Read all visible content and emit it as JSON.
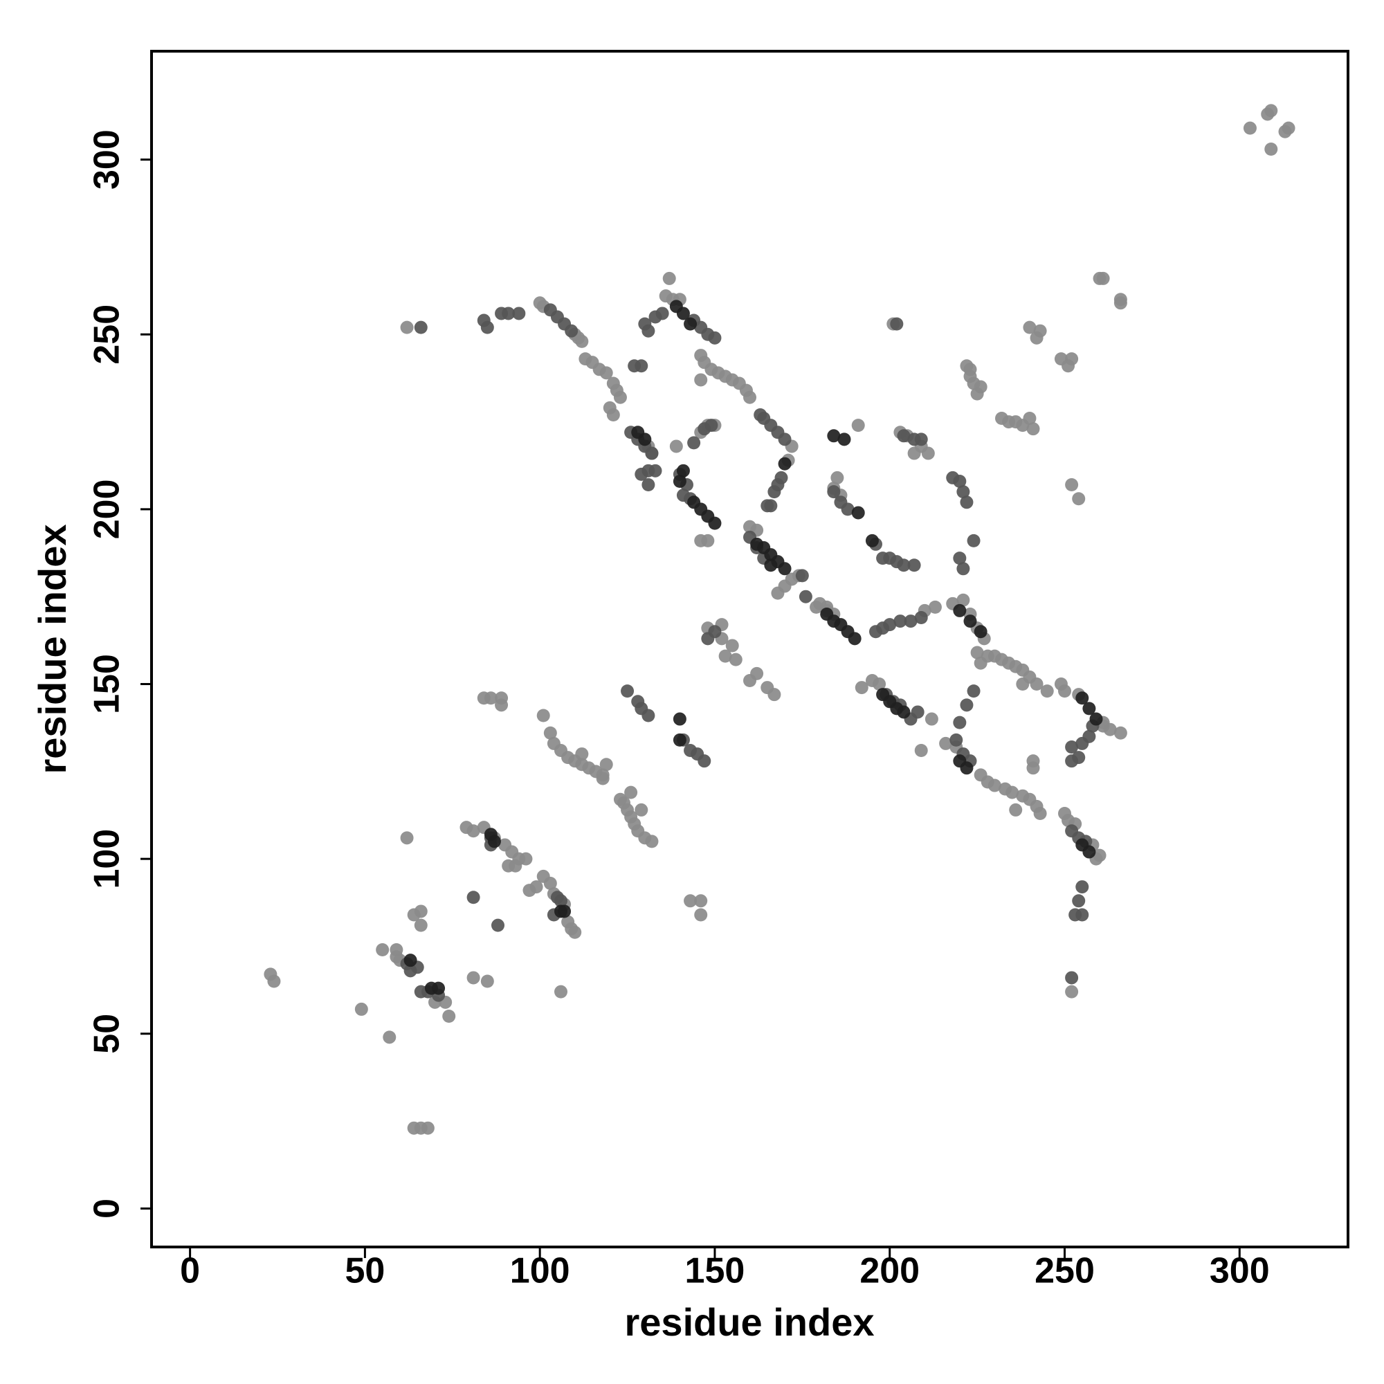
{
  "chart_data": {
    "type": "scatter",
    "x_label": "residue index",
    "y_label": "residue index",
    "xlim": [
      -11,
      331
    ],
    "ylim": [
      -11,
      331
    ],
    "xticks": [
      0,
      50,
      100,
      150,
      200,
      250,
      300
    ],
    "yticks": [
      0,
      50,
      100,
      150,
      200,
      250,
      300
    ],
    "grid": false,
    "series": [
      {
        "color": "#8a8a8a",
        "x": [
          308,
          309,
          303,
          314,
          313,
          309,
          260,
          261,
          266,
          266,
          62,
          100,
          101,
          110,
          111,
          112,
          113,
          115,
          117,
          119,
          121,
          122,
          123,
          120,
          121,
          137,
          136,
          138,
          140,
          146,
          147,
          149,
          151,
          153,
          155,
          157,
          159,
          160,
          146,
          148,
          150,
          146,
          139,
          131,
          132,
          172,
          171,
          160,
          162,
          146,
          148,
          174,
          172,
          179,
          180,
          182,
          184,
          185,
          186,
          191,
          203,
          205,
          209,
          211,
          207,
          201,
          222,
          223,
          224,
          225,
          223,
          226,
          232,
          234,
          236,
          238,
          240,
          241,
          240,
          243,
          242,
          249,
          252,
          251,
          252,
          254,
          152,
          148,
          152,
          155,
          153,
          156,
          160,
          162,
          165,
          167,
          182,
          184,
          195,
          197,
          192,
          210,
          213,
          218,
          221,
          223,
          225,
          227,
          225,
          230,
          232,
          234,
          236,
          238,
          240,
          242,
          245,
          238,
          212,
          216,
          219,
          209,
          226,
          228,
          230,
          233,
          235,
          238,
          240,
          242,
          243,
          236,
          241,
          241,
          250,
          251,
          253,
          258,
          260,
          259,
          261,
          263,
          266,
          261,
          249,
          250,
          254,
          101,
          103,
          104,
          106,
          108,
          110,
          112,
          114,
          116,
          118,
          119,
          112,
          123,
          124,
          125,
          126,
          127,
          128,
          130,
          132,
          126,
          129,
          143,
          146,
          146,
          118,
          79,
          81,
          84,
          87,
          90,
          92,
          94,
          91,
          93,
          96,
          84,
          86,
          89,
          89,
          97,
          99,
          101,
          103,
          104,
          107,
          108,
          109,
          110,
          62,
          64,
          66,
          66,
          55,
          59,
          59,
          60,
          81,
          85,
          49,
          57,
          70,
          73,
          74,
          106,
          23,
          24,
          64,
          66,
          68,
          252,
          226,
          228,
          168,
          170
        ],
        "y": [
          313,
          314,
          309,
          309,
          308,
          303,
          266,
          266,
          260,
          259,
          252,
          259,
          258,
          250,
          249,
          248,
          243,
          242,
          240,
          239,
          236,
          234,
          232,
          229,
          227,
          266,
          261,
          260,
          260,
          244,
          242,
          240,
          239,
          238,
          237,
          236,
          234,
          232,
          237,
          224,
          224,
          222,
          218,
          218,
          216,
          218,
          214,
          195,
          194,
          191,
          191,
          181,
          180,
          172,
          173,
          172,
          206,
          209,
          204,
          224,
          222,
          221,
          218,
          216,
          216,
          253,
          241,
          238,
          236,
          233,
          240,
          235,
          226,
          225,
          225,
          224,
          226,
          223,
          252,
          251,
          249,
          243,
          243,
          241,
          207,
          203,
          167,
          166,
          163,
          161,
          158,
          157,
          151,
          153,
          149,
          147,
          171,
          170,
          151,
          150,
          149,
          171,
          172,
          173,
          174,
          170,
          166,
          163,
          159,
          158,
          157,
          156,
          155,
          154,
          152,
          150,
          148,
          150,
          140,
          133,
          132,
          131,
          124,
          122,
          121,
          120,
          119,
          118,
          117,
          115,
          113,
          114,
          128,
          126,
          113,
          111,
          110,
          104,
          101,
          100,
          138,
          137,
          136,
          139,
          150,
          148,
          147,
          141,
          136,
          133,
          131,
          129,
          128,
          127,
          126,
          125,
          124,
          127,
          130,
          117,
          116,
          114,
          112,
          110,
          108,
          106,
          105,
          119,
          114,
          88,
          88,
          84,
          123,
          109,
          108,
          109,
          106,
          104,
          102,
          100,
          98,
          98,
          100,
          146,
          146,
          146,
          144,
          91,
          92,
          95,
          93,
          90,
          87,
          82,
          80,
          79,
          106,
          84,
          85,
          81,
          74,
          74,
          72,
          71,
          66,
          65,
          57,
          49,
          59,
          59,
          55,
          62,
          67,
          65,
          23,
          23,
          23,
          62,
          156,
          158,
          176,
          178
        ]
      },
      {
        "color": "#555555",
        "x": [
          66,
          84,
          85,
          89,
          91,
          94,
          103,
          105,
          107,
          109,
          127,
          129,
          130,
          131,
          133,
          135,
          144,
          146,
          148,
          150,
          163,
          164,
          166,
          168,
          170,
          126,
          128,
          130,
          132,
          131,
          133,
          129,
          131,
          140,
          142,
          141,
          143,
          147,
          149,
          144,
          167,
          168,
          169,
          165,
          166,
          186,
          188,
          184,
          196,
          198,
          200,
          202,
          204,
          207,
          204,
          207,
          209,
          218,
          220,
          221,
          222,
          202,
          220,
          221,
          224,
          196,
          198,
          200,
          203,
          206,
          209,
          148,
          150,
          176,
          175,
          199,
          201,
          203,
          219,
          221,
          223,
          220,
          222,
          224,
          252,
          255,
          257,
          258,
          252,
          254,
          255,
          254,
          253,
          255,
          252,
          252,
          254,
          256,
          125,
          128,
          129,
          131,
          141,
          143,
          145,
          147,
          88,
          81,
          62,
          63,
          65,
          66,
          68,
          71,
          106,
          105,
          104,
          86,
          86,
          160,
          162,
          164,
          206,
          208
        ],
        "y": [
          252,
          254,
          252,
          256,
          256,
          256,
          257,
          255,
          253,
          251,
          241,
          241,
          253,
          251,
          255,
          256,
          254,
          252,
          250,
          249,
          227,
          226,
          224,
          222,
          220,
          222,
          220,
          218,
          216,
          211,
          211,
          210,
          207,
          210,
          207,
          204,
          203,
          223,
          224,
          219,
          205,
          207,
          209,
          201,
          201,
          202,
          200,
          205,
          190,
          186,
          186,
          185,
          184,
          184,
          221,
          220,
          220,
          209,
          208,
          205,
          202,
          253,
          186,
          183,
          191,
          165,
          166,
          167,
          168,
          168,
          169,
          163,
          165,
          175,
          181,
          147,
          145,
          144,
          134,
          130,
          128,
          139,
          144,
          148,
          132,
          133,
          135,
          138,
          128,
          129,
          92,
          88,
          84,
          84,
          66,
          108,
          106,
          105,
          148,
          145,
          143,
          141,
          134,
          131,
          130,
          128,
          81,
          89,
          70,
          68,
          69,
          62,
          62,
          61,
          88,
          89,
          84,
          104,
          106,
          192,
          189,
          186,
          140,
          142
        ]
      },
      {
        "color": "#202020",
        "x": [
          139,
          141,
          143,
          162,
          164,
          166,
          168,
          170,
          144,
          146,
          148,
          150,
          182,
          184,
          186,
          188,
          190,
          198,
          200,
          202,
          204,
          220,
          222,
          255,
          257,
          259,
          128,
          130,
          140,
          141,
          184,
          187,
          191,
          195,
          170,
          255,
          257,
          106,
          107,
          86,
          87,
          63,
          71,
          69,
          140,
          140,
          166,
          220,
          223,
          226
        ],
        "y": [
          258,
          256,
          253,
          190,
          189,
          187,
          185,
          183,
          202,
          200,
          198,
          196,
          170,
          168,
          167,
          165,
          163,
          147,
          145,
          143,
          142,
          128,
          126,
          146,
          143,
          140,
          222,
          220,
          208,
          211,
          221,
          220,
          199,
          191,
          213,
          104,
          102,
          85,
          85,
          107,
          105,
          71,
          63,
          63,
          140,
          134,
          184,
          171,
          168,
          165
        ]
      }
    ]
  }
}
